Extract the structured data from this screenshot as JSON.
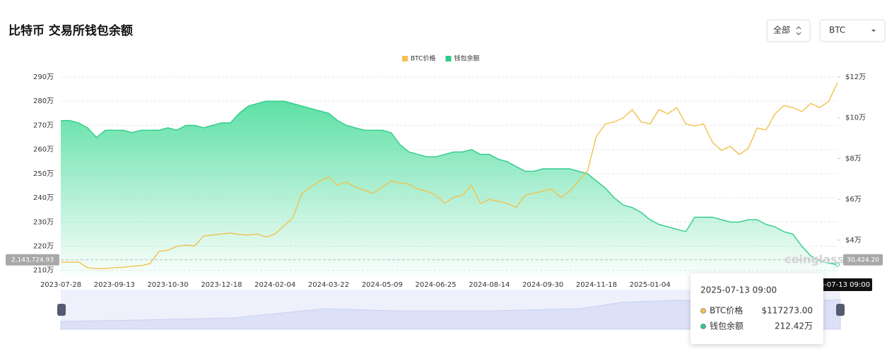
{
  "chart_data": {
    "type": "line",
    "title": "比特币 交易所钱包余额",
    "categories": [
      "2023-07-28",
      null,
      null,
      null,
      null,
      null,
      "2023-09-13",
      null,
      null,
      null,
      null,
      null,
      "2023-10-30",
      null,
      null,
      null,
      null,
      null,
      "2023-12-18",
      null,
      null,
      null,
      null,
      null,
      "2024-02-04",
      null,
      null,
      null,
      null,
      null,
      "2024-03-22",
      null,
      null,
      null,
      null,
      null,
      "2024-05-09",
      null,
      null,
      null,
      null,
      null,
      "2024-06-25",
      null,
      null,
      null,
      null,
      null,
      "2024-08-14",
      null,
      null,
      null,
      null,
      null,
      "2024-09-30",
      null,
      null,
      null,
      null,
      null,
      "2024-11-18",
      null,
      null,
      null,
      null,
      null,
      "2025-01-04",
      null,
      null,
      null,
      null,
      null,
      null,
      null,
      null,
      null,
      null,
      null,
      null,
      null,
      null,
      null,
      null,
      null,
      null,
      null,
      null,
      null
    ],
    "series": [
      {
        "name": "BTC价格",
        "color": "#f2c14e",
        "axis": "y2",
        "values": [
          29300,
          29200,
          29300,
          26500,
          26000,
          26100,
          26500,
          26700,
          27200,
          27500,
          28500,
          34500,
          35000,
          37000,
          37500,
          37200,
          42000,
          42500,
          43000,
          43500,
          42800,
          42500,
          43000,
          41500,
          43000,
          47000,
          51000,
          63000,
          66000,
          69000,
          71000,
          67000,
          68500,
          66000,
          64500,
          63000,
          66000,
          69000,
          68000,
          67500,
          65000,
          64000,
          62000,
          58000,
          61000,
          62000,
          67000,
          58000,
          60000,
          59000,
          58000,
          56000,
          62000,
          63000,
          64000,
          65000,
          61000,
          64000,
          69000,
          74000,
          91000,
          97000,
          98000,
          100000,
          104000,
          98000,
          97000,
          104000,
          102000,
          105000,
          97000,
          96000,
          97000,
          88000,
          84000,
          86000,
          82000,
          85000,
          95000,
          94000,
          102000,
          106000,
          105000,
          103000,
          107000,
          105000,
          108000,
          117273
        ]
      },
      {
        "name": "钱包余额",
        "color": "#2ecc8a",
        "area": true,
        "values": [
          272,
          272,
          271,
          269,
          265,
          268,
          268,
          268,
          267,
          268,
          268,
          268,
          269,
          268,
          270,
          270,
          269,
          270,
          271,
          271,
          275,
          278,
          279,
          280,
          280,
          280,
          279,
          278,
          277,
          276,
          275,
          272,
          270,
          269,
          268,
          268,
          268,
          267,
          262,
          259,
          258,
          257,
          257,
          258,
          259,
          259,
          260,
          258,
          258,
          256,
          255,
          253,
          251,
          251,
          252,
          252,
          252,
          252,
          251,
          250,
          247,
          244,
          240,
          237,
          236,
          234,
          231,
          229,
          228,
          227,
          226,
          232,
          232,
          232,
          231,
          230,
          230,
          231,
          231,
          229,
          228,
          226,
          225,
          220,
          216,
          214,
          213,
          212.42
        ]
      }
    ],
    "ylim": [
      207,
      290
    ],
    "yticks": [
      {
        "value": 210,
        "label": "210万"
      },
      {
        "value": 220,
        "label": "220万"
      },
      {
        "value": 230,
        "label": "230万"
      },
      {
        "value": 240,
        "label": "240万"
      },
      {
        "value": 250,
        "label": "250万"
      },
      {
        "value": 260,
        "label": "260万"
      },
      {
        "value": 270,
        "label": "270万"
      },
      {
        "value": 280,
        "label": "280万"
      },
      {
        "value": 290,
        "label": "290万"
      }
    ],
    "y2lim": [
      21600,
      120000
    ],
    "y2ticks": [
      {
        "value": 40000,
        "label": "$4万"
      },
      {
        "value": 60000,
        "label": "$6万"
      },
      {
        "value": 80000,
        "label": "$8万"
      },
      {
        "value": 100000,
        "label": "$10万"
      },
      {
        "value": 120000,
        "label": "$12万"
      }
    ],
    "grid": true,
    "legend": "top",
    "crosshair": {
      "y": 214.372493,
      "y_label": "2,143,724.93",
      "y2_label": "30,424.20",
      "x_label": "2025-07-13 09:00"
    },
    "tooltip": {
      "title": "2025-07-13 09:00",
      "items": [
        "$117273.00",
        "212.42万"
      ]
    },
    "watermark": "coinglass"
  },
  "controls": {
    "range": "全部",
    "coin": "BTC"
  }
}
